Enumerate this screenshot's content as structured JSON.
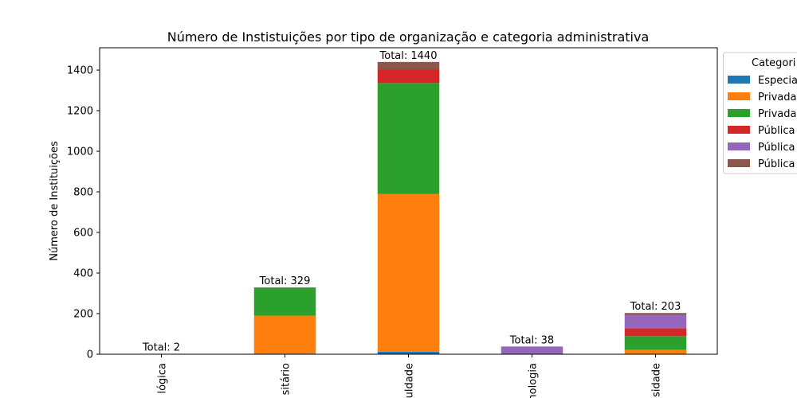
{
  "chart_data": {
    "type": "bar",
    "stacked": true,
    "title": "Número de Instistuições por tipo de organização e categoria administrativa",
    "ylabel": "Número de Instituições",
    "xlabel": "",
    "ylim": [
      0,
      1510
    ],
    "yticks": [
      0,
      200,
      400,
      600,
      800,
      1000,
      1200,
      1400
    ],
    "categories": [
      "lógica",
      "sitário",
      "uldade",
      "nologia",
      "sidade"
    ],
    "totals": [
      2,
      329,
      1440,
      38,
      203
    ],
    "total_prefix": "Total: ",
    "legend": {
      "title": "Categori",
      "placement": "upper-right-outside"
    },
    "series": [
      {
        "name": "Especia",
        "color": "#1f77b4",
        "values": [
          0,
          3,
          12,
          0,
          0
        ]
      },
      {
        "name": "Privada",
        "color": "#ff7f0e",
        "values": [
          0,
          187,
          777,
          0,
          22
        ]
      },
      {
        "name": "Privada",
        "color": "#2ca02c",
        "values": [
          0,
          136,
          547,
          0,
          67
        ]
      },
      {
        "name": "Pública",
        "color": "#d62728",
        "values": [
          0,
          0,
          68,
          0,
          39
        ]
      },
      {
        "name": "Pública",
        "color": "#9467bd",
        "values": [
          2,
          0,
          0,
          38,
          66
        ]
      },
      {
        "name": "Pública",
        "color": "#8c564b",
        "values": [
          0,
          3,
          36,
          0,
          9
        ]
      }
    ]
  }
}
